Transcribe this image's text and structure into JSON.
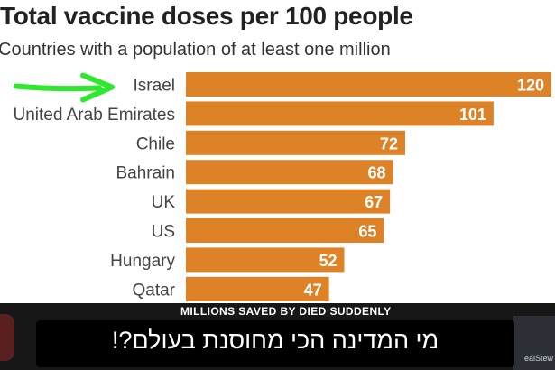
{
  "chart_data": {
    "type": "bar",
    "orientation": "horizontal",
    "title": "Total vaccine doses per 100 people",
    "subtitle": "Countries with a population of at least one million",
    "categories": [
      "Israel",
      "United Arab Emirates",
      "Chile",
      "Bahrain",
      "UK",
      "US",
      "Hungary",
      "Qatar"
    ],
    "values": [
      120,
      101,
      72,
      68,
      67,
      65,
      52,
      47
    ],
    "xlim": [
      0,
      120
    ],
    "bar_color": "#de8228",
    "grid": false,
    "annotation": {
      "type": "arrow",
      "color": "#2ee82e",
      "points_to": "Israel"
    }
  },
  "overlay": {
    "ticker_text": "MILLIONS SAVED BY DIED SUDDENLY",
    "caption_text": "מי המדינה הכי מחוסנת בעולם?!",
    "handle_text": "ealStew"
  }
}
